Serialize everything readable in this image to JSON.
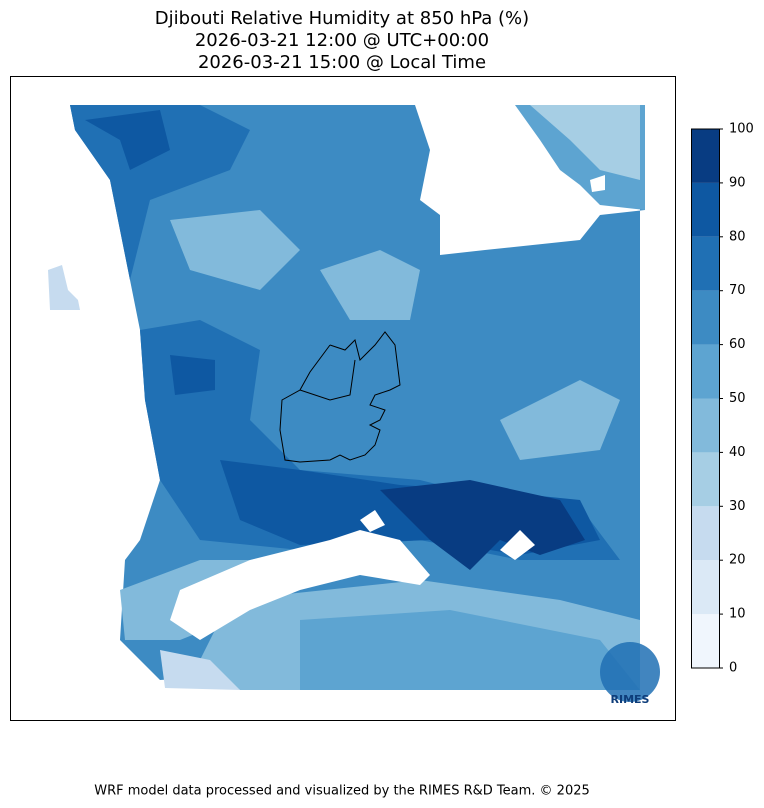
{
  "title_lines": [
    "Djibouti Relative Humidity at 850 hPa (%)",
    "2026-03-21 12:00 @ UTC+00:00",
    "2026-03-21 15:00 @ Local Time"
  ],
  "colorbar": {
    "ticks": [
      0,
      10,
      20,
      30,
      40,
      50,
      60,
      70,
      80,
      90,
      100
    ],
    "colors": [
      "#f0f6fd",
      "#dbe9f6",
      "#c6dbef",
      "#a6cee4",
      "#82badb",
      "#5da4d1",
      "#3d8bc3",
      "#2070b4",
      "#0e58a2",
      "#083c82"
    ]
  },
  "logo_text": "RIMES",
  "footer": "WRF model data processed and visualized by the RIMES R&D Team. © 2025"
}
